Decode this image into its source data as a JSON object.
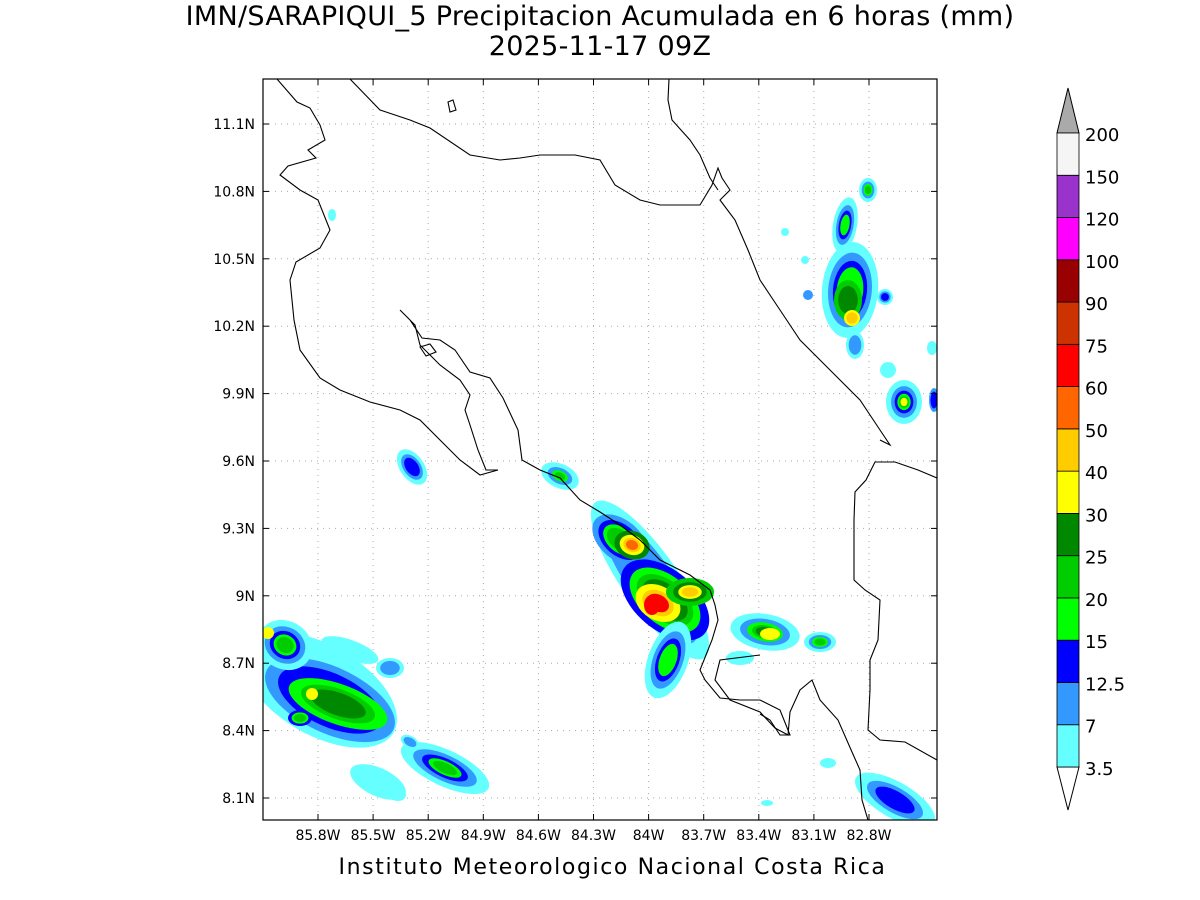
{
  "header": {
    "title_line1": "IMN/SARAPIQUI_5 Precipitacion Acumulada en 6 horas (mm)",
    "title_line2": "2025-11-17 09Z"
  },
  "footer": {
    "credit": "Instituto Meteorologico Nacional Costa Rica"
  },
  "map": {
    "lon_range": [
      -86.0,
      -83.0
    ],
    "lat_range": [
      8.0,
      11.3
    ],
    "lat_ticks": [
      {
        "value": 8.1,
        "label": "8.1N"
      },
      {
        "value": 8.4,
        "label": "8.4N"
      },
      {
        "value": 8.7,
        "label": "8.7N"
      },
      {
        "value": 9.0,
        "label": "9N"
      },
      {
        "value": 9.3,
        "label": "9.3N"
      },
      {
        "value": 9.6,
        "label": "9.6N"
      },
      {
        "value": 9.9,
        "label": "9.9N"
      },
      {
        "value": 10.2,
        "label": "10.2N"
      },
      {
        "value": 10.5,
        "label": "10.5N"
      },
      {
        "value": 10.8,
        "label": "10.8N"
      },
      {
        "value": 11.1,
        "label": "11.1N"
      }
    ],
    "lon_ticks": [
      {
        "value": -85.8,
        "label": "85.8W"
      },
      {
        "value": -85.5,
        "label": "85.5W"
      },
      {
        "value": -85.2,
        "label": "85.2W"
      },
      {
        "value": -84.9,
        "label": "84.9W"
      },
      {
        "value": -84.6,
        "label": "84.6W"
      },
      {
        "value": -84.3,
        "label": "84.3W"
      },
      {
        "value": -84.0,
        "label": "84W"
      },
      {
        "value": -83.7,
        "label": "83.7W"
      },
      {
        "value": -83.4,
        "label": "83.4W"
      },
      {
        "value": -83.1,
        "label": "83.1W"
      },
      {
        "value": -82.8,
        "label": "82.8W"
      }
    ],
    "grid": true
  },
  "colorbar": {
    "levels": [
      {
        "label": "3.5",
        "color": "#66ffff"
      },
      {
        "label": "7",
        "color": "#3399ff"
      },
      {
        "label": "12.5",
        "color": "#0000ff"
      },
      {
        "label": "15",
        "color": "#00ff00"
      },
      {
        "label": "20",
        "color": "#00cc00"
      },
      {
        "label": "25",
        "color": "#008800"
      },
      {
        "label": "30",
        "color": "#ffff00"
      },
      {
        "label": "40",
        "color": "#ffcc00"
      },
      {
        "label": "50",
        "color": "#ff6600"
      },
      {
        "label": "60",
        "color": "#ff0000"
      },
      {
        "label": "75",
        "color": "#cc3300"
      },
      {
        "label": "90",
        "color": "#990000"
      },
      {
        "label": "100",
        "color": "#ff00ff"
      },
      {
        "label": "120",
        "color": "#9933cc"
      },
      {
        "label": "150",
        "color": "#f5f5f5"
      },
      {
        "label": "200",
        "color": ""
      }
    ],
    "top_arrow_color": "#aaaaaa",
    "bottom_arrow_color": "#ffffff"
  }
}
